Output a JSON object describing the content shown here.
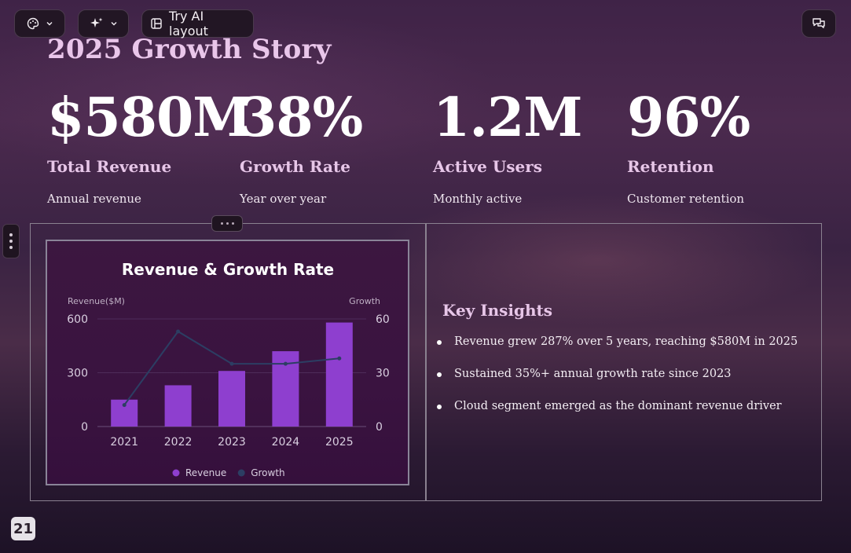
{
  "toolbar": {
    "theme_icon": "palette-icon",
    "ai_icon": "sparkle-icon",
    "layout_icon": "layout-icon",
    "layout_label": "Try AI layout",
    "comment_icon": "comments-icon"
  },
  "slide": {
    "title": "2025 Growth Story",
    "page_number": "21",
    "stats": [
      {
        "value": "$580M",
        "label": "Total Revenue",
        "desc": "Annual revenue"
      },
      {
        "value": "38%",
        "label": "Growth Rate",
        "desc": "Year over year"
      },
      {
        "value": "1.2M",
        "label": "Active Users",
        "desc": "Monthly active"
      },
      {
        "value": "96%",
        "label": "Retention",
        "desc": "Customer retention"
      }
    ],
    "insights": {
      "title": "Key Insights",
      "items": [
        "Revenue grew 287% over 5 years, reaching $580M in 2025",
        "Sustained 35%+ annual growth rate since 2023",
        "Cloud segment emerged as the dominant revenue driver"
      ]
    }
  },
  "chart_data": {
    "type": "bar",
    "title": "Revenue & Growth Rate",
    "categories": [
      "2021",
      "2022",
      "2023",
      "2024",
      "2025"
    ],
    "y_left_label": "Revenue($M)",
    "y_right_label": "Growth",
    "y_left_ticks": [
      "0",
      "300",
      "600"
    ],
    "y_right_ticks": [
      "0",
      "30",
      "60"
    ],
    "ylim_left": [
      0,
      600
    ],
    "ylim_right": [
      0,
      60
    ],
    "series": [
      {
        "name": "Revenue",
        "type": "bar",
        "axis": "left",
        "color": "#8e3fcf",
        "values": [
          150,
          230,
          310,
          420,
          580
        ]
      },
      {
        "name": "Growth",
        "type": "line",
        "axis": "right",
        "color": "#2c3e63",
        "values": [
          12,
          53,
          35,
          35,
          38
        ]
      }
    ],
    "legend_position": "bottom",
    "grid": true
  }
}
